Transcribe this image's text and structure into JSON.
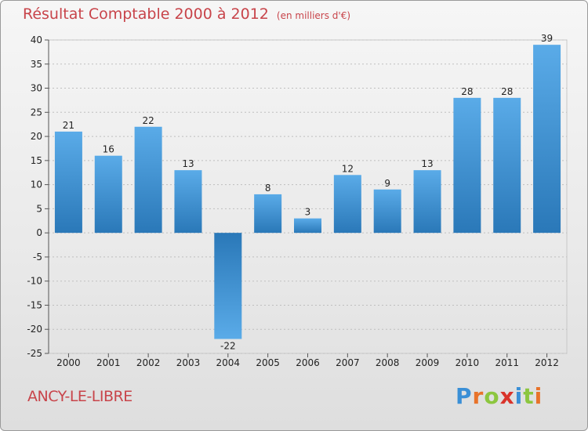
{
  "header": {
    "title": "Résultat Comptable 2000 à 2012",
    "unit": "(en milliers d'€)"
  },
  "footer": {
    "commune": "ANCY-LE-LIBRE",
    "logo_text": "Proxiti",
    "logo_letters": [
      "P",
      "r",
      "o",
      "x",
      "i",
      "t",
      "i"
    ],
    "logo_colors": [
      "#3a8fd6",
      "#e8732a",
      "#8cc63f",
      "#d9342b",
      "#3a8fd6",
      "#8cc63f",
      "#e8732a"
    ]
  },
  "colors": {
    "title": "#c8444a",
    "bar_top": "#5aabe8",
    "bar_bottom": "#2a78b8",
    "grid": "#bfbfbf"
  },
  "chart_data": {
    "type": "bar",
    "title": "Résultat Comptable 2000 à 2012",
    "subtitle": "(en milliers d'€)",
    "xlabel": "",
    "ylabel": "",
    "categories": [
      "2000",
      "2001",
      "2002",
      "2003",
      "2004",
      "2005",
      "2006",
      "2007",
      "2008",
      "2009",
      "2010",
      "2011",
      "2012"
    ],
    "values": [
      21,
      16,
      22,
      13,
      -22,
      8,
      3,
      12,
      9,
      13,
      28,
      28,
      39
    ],
    "ylim": [
      -25,
      40
    ],
    "yticks": [
      40,
      35,
      30,
      25,
      20,
      15,
      10,
      5,
      0,
      -5,
      -10,
      -15,
      -20,
      -25
    ],
    "grid": true
  }
}
